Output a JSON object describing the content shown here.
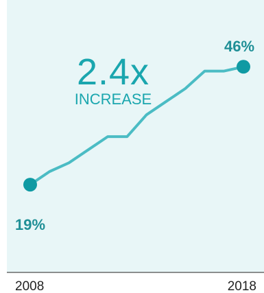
{
  "colors": {
    "panel_bg": "#e8f6f7",
    "line": "#4bbcc4",
    "marker": "#0f9aa3",
    "annotation": "#1aa6ae",
    "label_dark": "#1f8f96",
    "axis": "#222222"
  },
  "annotation": {
    "value": "2.4x",
    "label": "INCREASE"
  },
  "chart_data": {
    "type": "line",
    "title": "",
    "xlabel": "",
    "ylabel": "",
    "x_tick_labels": [
      "2008",
      "2018"
    ],
    "grid": false,
    "legend": "none",
    "series": [
      {
        "values": [
          19,
          22,
          24,
          27,
          30,
          30,
          35,
          38,
          41,
          45,
          45,
          46
        ]
      }
    ],
    "start_label": "19%",
    "end_label": "46%",
    "ylim": [
      0,
      55
    ]
  }
}
